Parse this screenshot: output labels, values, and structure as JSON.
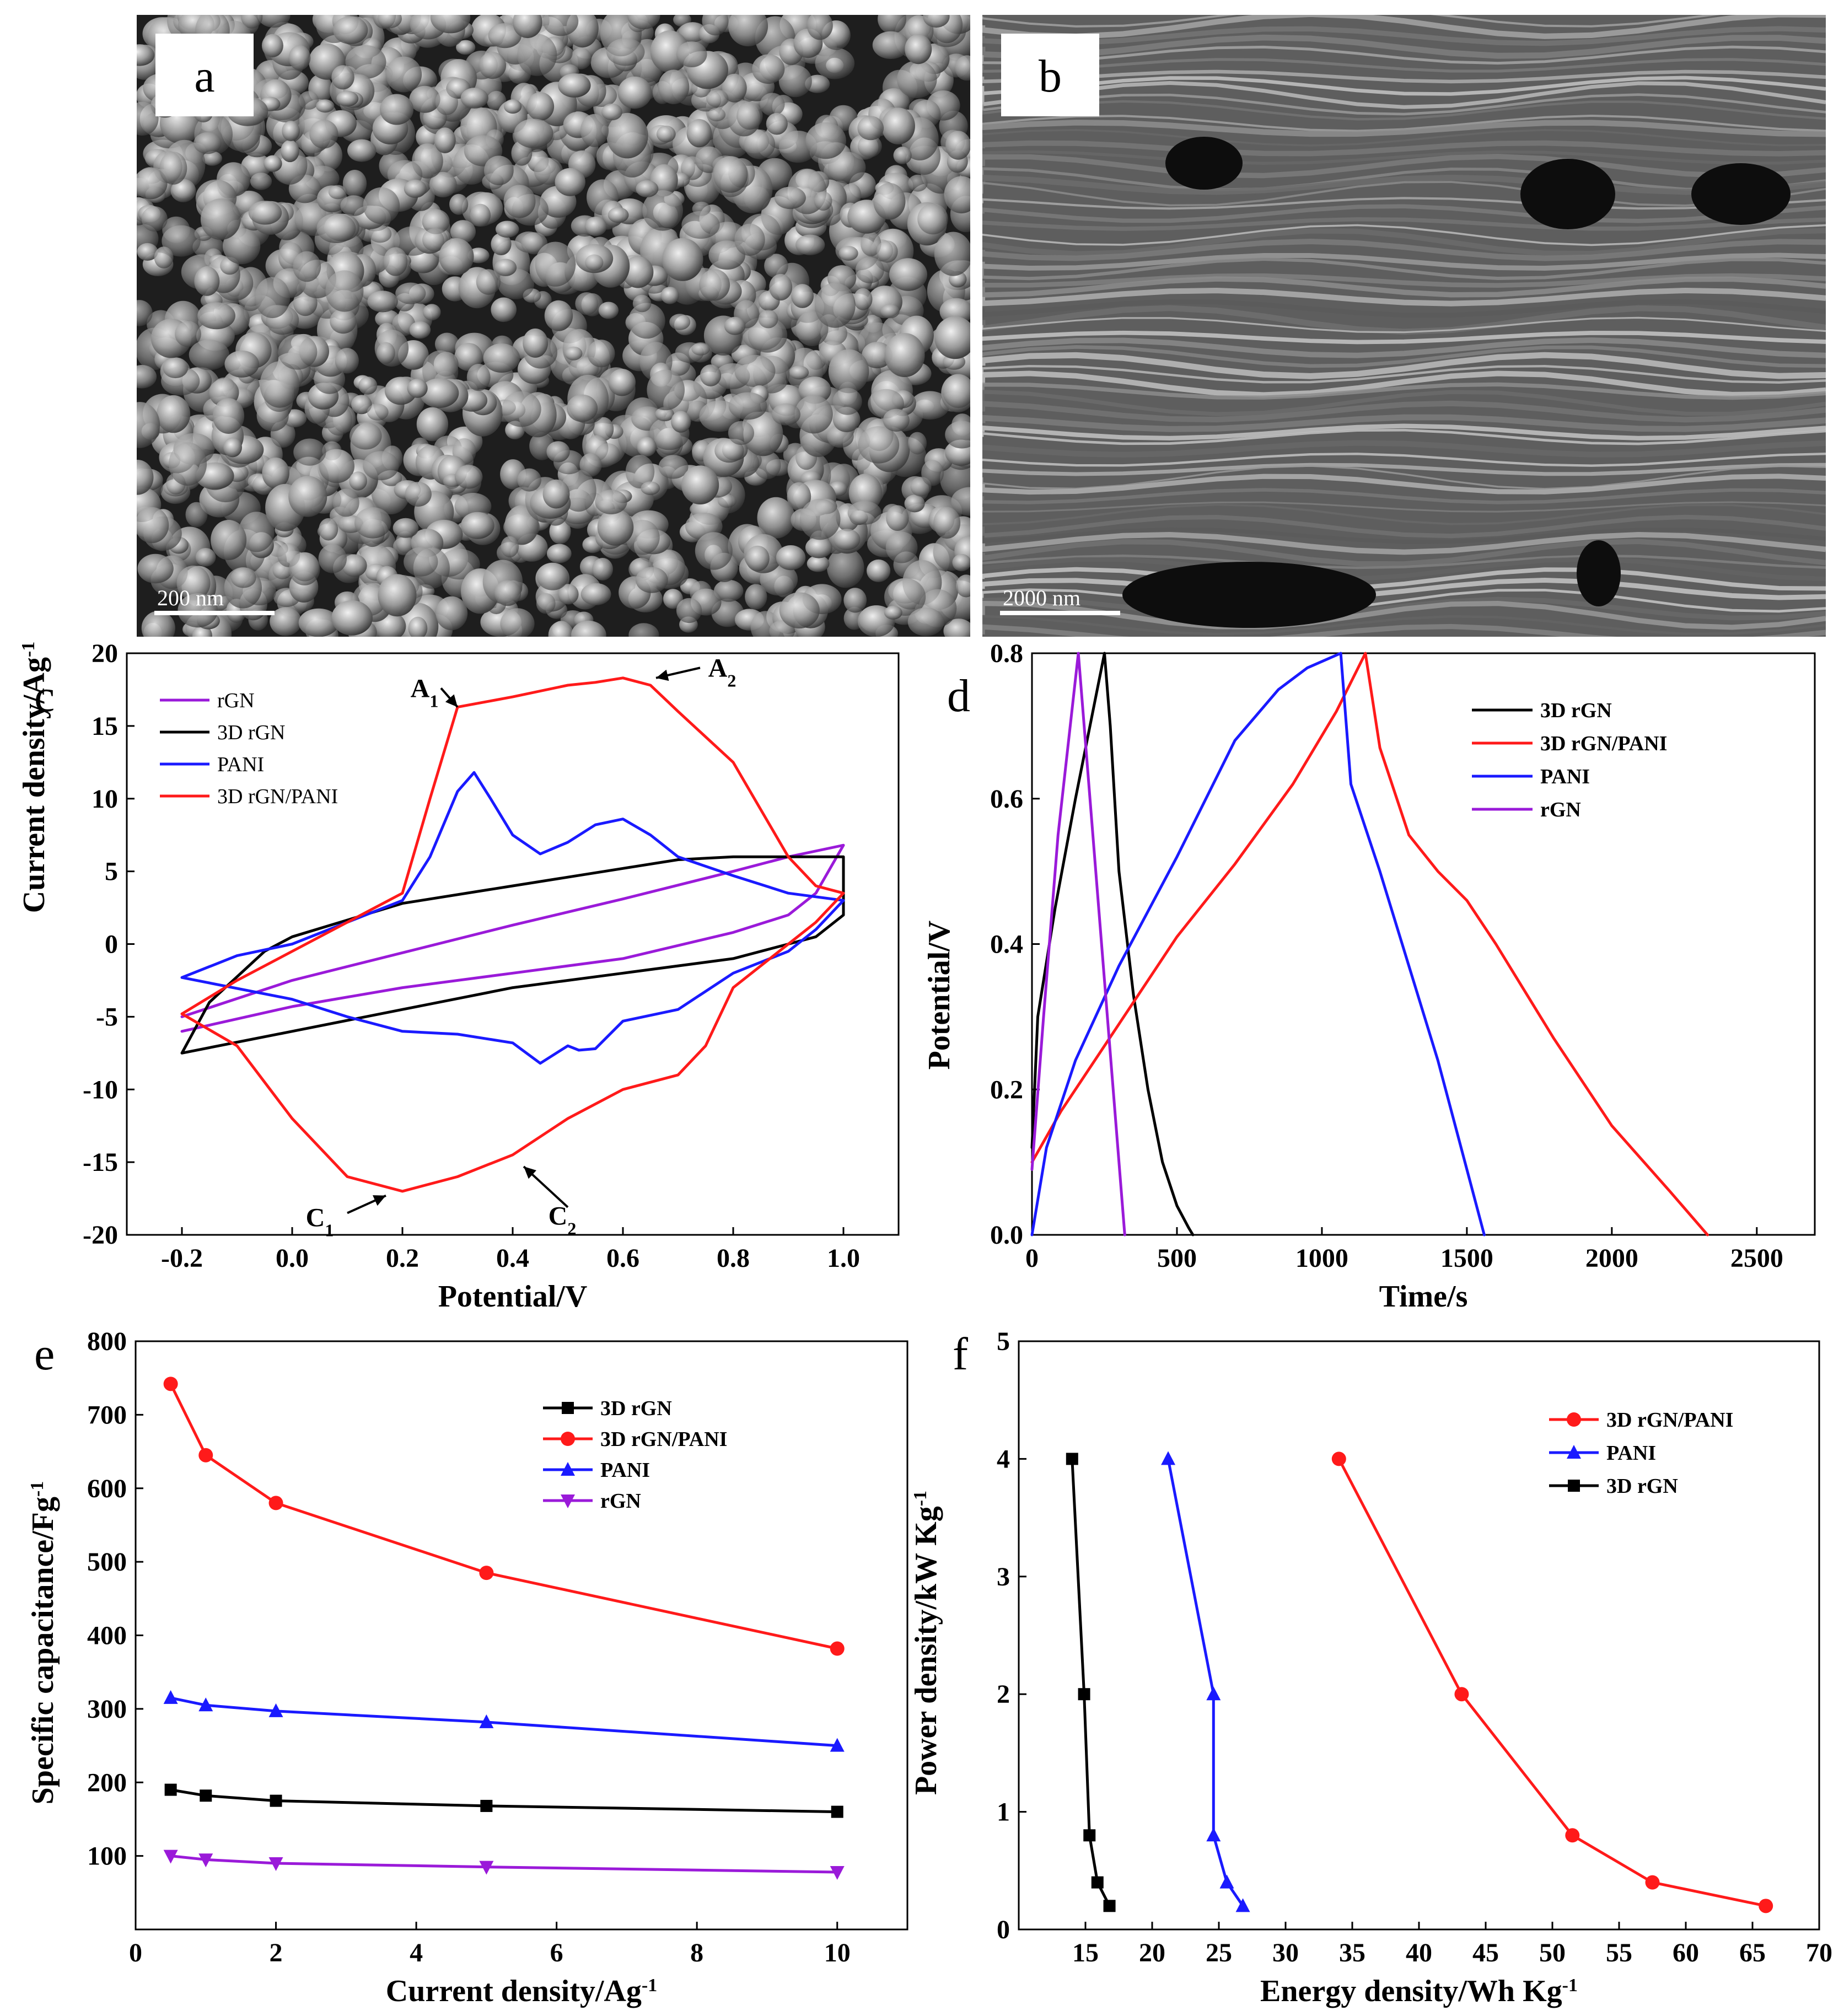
{
  "figure": {
    "panels": [
      "a",
      "b",
      "c",
      "d",
      "e",
      "f"
    ]
  },
  "sem": [
    {
      "label": "a",
      "scale_bar": "200 nm"
    },
    {
      "label": "b",
      "scale_bar": "2000 nm"
    }
  ],
  "colors": {
    "black": "#000000",
    "red": "#ff1a1a",
    "blue": "#1a1aff",
    "purple": "#9a1ad9"
  },
  "chart_data": [
    {
      "panel": "c",
      "type": "line",
      "xlabel": "Potential/V",
      "ylabel": "Current density/Ag⁻¹",
      "xlim": [
        -0.3,
        1.1
      ],
      "ylim": [
        -20,
        20
      ],
      "xticks": [
        -0.2,
        0.0,
        0.2,
        0.4,
        0.6,
        0.8,
        1.0
      ],
      "xtick_labels": [
        "-0.2",
        "0.0",
        "0.2",
        "0.4",
        "0.6",
        "0.8",
        "1.0"
      ],
      "yticks": [
        -20,
        -15,
        -10,
        -5,
        0,
        5,
        10,
        15,
        20
      ],
      "ytick_labels": [
        "-20",
        "-15",
        "-10",
        "-5",
        "0",
        "5",
        "10",
        "15",
        "20"
      ],
      "legend": [
        "rGN",
        "3D rGN",
        "PANI",
        "3D rGN/PANI"
      ],
      "annotations": [
        {
          "text": "A",
          "sub": "1",
          "x": 0.27,
          "y": 17.6
        },
        {
          "text": "A",
          "sub": "2",
          "x": 0.76,
          "y": 19.0
        },
        {
          "text": "C",
          "sub": "1",
          "x": 0.08,
          "y": -18.8
        },
        {
          "text": "C",
          "sub": "2",
          "x": 0.52,
          "y": -18.7
        }
      ],
      "series": [
        {
          "name": "rGN",
          "color": "#9a1ad9",
          "x": [
            -0.2,
            0.0,
            0.2,
            0.4,
            0.6,
            0.8,
            0.9,
            1.0,
            0.95,
            0.9,
            0.8,
            0.6,
            0.4,
            0.2,
            0.0,
            -0.2
          ],
          "y": [
            -5.0,
            -2.5,
            -0.6,
            1.3,
            3.1,
            5.0,
            6.0,
            6.8,
            3.5,
            2.0,
            0.8,
            -1.0,
            -2.0,
            -3.0,
            -4.3,
            -6.0
          ]
        },
        {
          "name": "3D rGN",
          "color": "#000000",
          "x": [
            -0.2,
            -0.15,
            -0.05,
            0.0,
            0.2,
            0.4,
            0.6,
            0.7,
            0.8,
            0.9,
            1.0,
            1.0,
            0.95,
            0.9,
            0.8,
            0.6,
            0.4,
            0.2,
            0.0,
            -0.2
          ],
          "y": [
            -7.5,
            -4.0,
            -0.5,
            0.5,
            2.8,
            4.0,
            5.2,
            5.8,
            6.0,
            6.0,
            6.0,
            2.0,
            0.5,
            0.0,
            -1.0,
            -2.0,
            -3.0,
            -4.5,
            -6.0,
            -7.5
          ]
        },
        {
          "name": "PANI",
          "color": "#1a1aff",
          "x": [
            -0.2,
            -0.1,
            0.0,
            0.2,
            0.25,
            0.3,
            0.33,
            0.36,
            0.4,
            0.45,
            0.5,
            0.55,
            0.6,
            0.65,
            0.7,
            0.8,
            0.9,
            1.0,
            0.95,
            0.9,
            0.8,
            0.7,
            0.6,
            0.55,
            0.52,
            0.5,
            0.45,
            0.4,
            0.3,
            0.2,
            0.1,
            0.0,
            -0.2
          ],
          "y": [
            -2.3,
            -0.8,
            0.0,
            3.0,
            6.0,
            10.5,
            11.8,
            10.0,
            7.5,
            6.2,
            7.0,
            8.2,
            8.6,
            7.5,
            6.0,
            4.7,
            3.5,
            3.0,
            1.0,
            -0.5,
            -2.0,
            -4.5,
            -5.3,
            -7.2,
            -7.3,
            -7.0,
            -8.2,
            -6.8,
            -6.2,
            -6.0,
            -5.0,
            -3.8,
            -2.3
          ]
        },
        {
          "name": "3D rGN/PANI",
          "color": "#ff1a1a",
          "x": [
            -0.2,
            -0.1,
            0.0,
            0.1,
            0.2,
            0.25,
            0.3,
            0.4,
            0.5,
            0.55,
            0.6,
            0.65,
            0.7,
            0.8,
            0.9,
            0.95,
            1.0,
            0.95,
            0.9,
            0.8,
            0.75,
            0.7,
            0.6,
            0.5,
            0.4,
            0.3,
            0.2,
            0.1,
            0.0,
            -0.1,
            -0.2
          ],
          "y": [
            -4.8,
            -2.5,
            -0.5,
            1.5,
            3.5,
            10.0,
            16.3,
            17.0,
            17.8,
            18.0,
            18.3,
            17.8,
            16.0,
            12.5,
            6.0,
            4.0,
            3.5,
            1.5,
            0.0,
            -3.0,
            -7.0,
            -9.0,
            -10.0,
            -12.0,
            -14.5,
            -16.0,
            -17.0,
            -16.0,
            -12.0,
            -7.0,
            -4.8
          ]
        }
      ]
    },
    {
      "panel": "d",
      "type": "line",
      "xlabel": "Time/s",
      "ylabel": "Potential/V",
      "xlim": [
        0,
        2700
      ],
      "ylim": [
        0,
        0.8
      ],
      "xticks": [
        0,
        500,
        1000,
        1500,
        2000,
        2500
      ],
      "xtick_labels": [
        "0",
        "500",
        "1000",
        "1500",
        "2000",
        "2500"
      ],
      "yticks": [
        0.0,
        0.2,
        0.4,
        0.6,
        0.8
      ],
      "ytick_labels": [
        "0.0",
        "0.2",
        "0.4",
        "0.6",
        "0.8"
      ],
      "legend": [
        "3D rGN",
        "3D rGN/PANI",
        "PANI",
        "rGN"
      ],
      "series": [
        {
          "name": "3D rGN",
          "color": "#000000",
          "x": [
            0,
            20,
            80,
            150,
            200,
            250,
            270,
            300,
            350,
            400,
            450,
            500,
            540,
            555
          ],
          "y": [
            0.12,
            0.3,
            0.45,
            0.6,
            0.7,
            0.8,
            0.7,
            0.5,
            0.33,
            0.2,
            0.1,
            0.04,
            0.01,
            0.0
          ]
        },
        {
          "name": "3D rGN/PANI",
          "color": "#ff1a1a",
          "x": [
            0,
            100,
            300,
            500,
            700,
            900,
            1050,
            1150,
            1200,
            1300,
            1400,
            1500,
            1600,
            1800,
            2000,
            2200,
            2330
          ],
          "y": [
            0.1,
            0.17,
            0.29,
            0.41,
            0.51,
            0.62,
            0.72,
            0.8,
            0.67,
            0.55,
            0.5,
            0.46,
            0.4,
            0.27,
            0.15,
            0.06,
            0.0
          ]
        },
        {
          "name": "PANI",
          "color": "#1a1aff",
          "x": [
            0,
            50,
            150,
            300,
            500,
            700,
            850,
            950,
            1065,
            1100,
            1200,
            1300,
            1400,
            1500,
            1560
          ],
          "y": [
            0.0,
            0.12,
            0.24,
            0.37,
            0.52,
            0.68,
            0.75,
            0.78,
            0.8,
            0.62,
            0.5,
            0.37,
            0.24,
            0.09,
            0.0
          ]
        },
        {
          "name": "rGN",
          "color": "#9a1ad9",
          "x": [
            0,
            40,
            90,
            160,
            200,
            250,
            300,
            320
          ],
          "y": [
            0.09,
            0.3,
            0.55,
            0.8,
            0.6,
            0.35,
            0.1,
            0.0
          ]
        }
      ]
    },
    {
      "panel": "e",
      "type": "line",
      "xlabel": "Current density/Ag⁻¹",
      "ylabel": "Specific capacitance/Fg⁻¹",
      "xlim": [
        0,
        11
      ],
      "ylim": [
        0,
        800
      ],
      "xticks": [
        0,
        2,
        4,
        6,
        8,
        10
      ],
      "xtick_labels": [
        "0",
        "2",
        "4",
        "6",
        "8",
        "10"
      ],
      "yticks": [
        100,
        200,
        300,
        400,
        500,
        600,
        700,
        800
      ],
      "ytick_labels": [
        "100",
        "200",
        "300",
        "400",
        "500",
        "600",
        "700",
        "800"
      ],
      "legend": [
        "3D rGN",
        "3D rGN/PANI",
        "PANI",
        "rGN"
      ],
      "x": [
        0.5,
        1,
        2,
        5,
        10
      ],
      "series": [
        {
          "name": "3D rGN",
          "color": "#000000",
          "marker": "square",
          "values": [
            190,
            182,
            175,
            168,
            160
          ]
        },
        {
          "name": "3D rGN/PANI",
          "color": "#ff1a1a",
          "marker": "circle",
          "values": [
            742,
            645,
            580,
            485,
            382
          ]
        },
        {
          "name": "PANI",
          "color": "#1a1aff",
          "marker": "triangle-up",
          "values": [
            315,
            305,
            297,
            282,
            250
          ]
        },
        {
          "name": "rGN",
          "color": "#9a1ad9",
          "marker": "triangle-down",
          "values": [
            100,
            95,
            90,
            85,
            78
          ]
        }
      ]
    },
    {
      "panel": "f",
      "type": "line",
      "xlabel": "Energy density/Wh Kg⁻¹",
      "ylabel": "Power density/kW Kg⁻¹",
      "xlim": [
        10,
        70
      ],
      "ylim": [
        0,
        5
      ],
      "xticks": [
        15,
        20,
        25,
        30,
        35,
        40,
        45,
        50,
        55,
        60,
        65,
        70
      ],
      "xtick_labels": [
        "15",
        "20",
        "25",
        "30",
        "35",
        "40",
        "45",
        "50",
        "55",
        "60",
        "65",
        "70"
      ],
      "yticks": [
        0,
        1,
        2,
        3,
        4,
        5
      ],
      "ytick_labels": [
        "0",
        "1",
        "2",
        "3",
        "4",
        "5"
      ],
      "legend": [
        "3D rGN/PANI",
        "PANI",
        "3D rGN"
      ],
      "series": [
        {
          "name": "3D rGN/PANI",
          "color": "#ff1a1a",
          "marker": "circle",
          "x": [
            34.0,
            43.2,
            51.5,
            57.5,
            66.0
          ],
          "y": [
            4.0,
            2.0,
            0.8,
            0.4,
            0.2
          ]
        },
        {
          "name": "PANI",
          "color": "#1a1aff",
          "marker": "triangle-up",
          "x": [
            21.2,
            24.6,
            24.6,
            25.6,
            26.8
          ],
          "y": [
            4.0,
            2.0,
            0.8,
            0.4,
            0.2
          ]
        },
        {
          "name": "3D rGN",
          "color": "#000000",
          "marker": "square",
          "x": [
            14.0,
            14.9,
            15.3,
            15.9,
            16.8
          ],
          "y": [
            4.0,
            2.0,
            0.8,
            0.4,
            0.2
          ]
        }
      ]
    }
  ]
}
